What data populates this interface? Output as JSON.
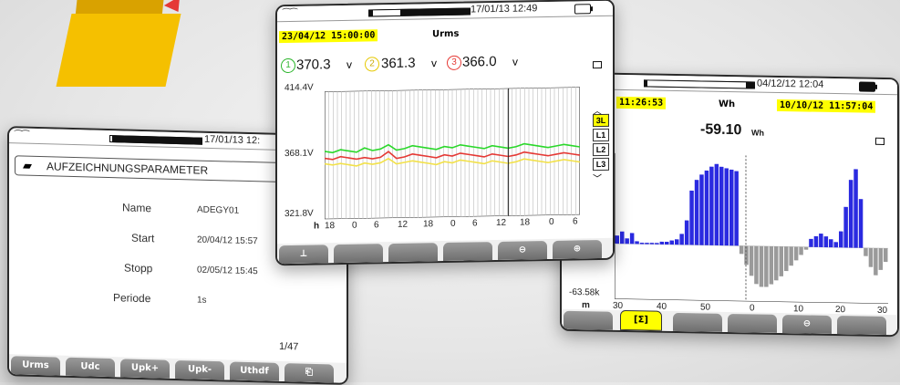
{
  "folder": {
    "icon": "folder-icon",
    "colors": {
      "front": "#f5c000",
      "back": "#d9a200",
      "arrow": "#e53935"
    }
  },
  "left_screen": {
    "datetime": "17/01/13 12:",
    "header": "AUFZEICHNUNGSPARAMETER",
    "rows": [
      {
        "label": "Name",
        "value": "ADEGY01"
      },
      {
        "label": "Start",
        "value": "20/04/12 15:57"
      },
      {
        "label": "Stopp",
        "value": "02/05/12 15:45"
      },
      {
        "label": "Periode",
        "value": "1s"
      }
    ],
    "page": "1/47",
    "buttons": [
      "Urms",
      "Udc",
      "Upk+",
      "Upk-",
      "Uthdf",
      ""
    ]
  },
  "middle_screen": {
    "datetime": "17/01/13 12:49",
    "cursor_time": "23/04/12 15:00:00",
    "measure": "Urms",
    "readings": [
      {
        "num": "1",
        "value": "370.3",
        "unit": "v",
        "color": "#2bb52b"
      },
      {
        "num": "2",
        "value": "361.3",
        "unit": "v",
        "color": "#e6c800"
      },
      {
        "num": "3",
        "value": "366.0",
        "unit": "v",
        "color": "#e53935"
      }
    ],
    "y_max": "414.4V",
    "y_mid": "368.1V",
    "y_min": "321.8V",
    "x_unit": "h",
    "x_ticks": [
      "18",
      "0",
      "6",
      "12",
      "18",
      "0",
      "6",
      "12",
      "18",
      "0",
      "6"
    ],
    "side_keys": [
      "3L",
      "L1",
      "L2",
      "L3"
    ],
    "buttons": [
      "",
      "",
      "",
      "",
      "",
      ""
    ],
    "chart_data": {
      "type": "line",
      "ylim": [
        321.8,
        414.4
      ],
      "series": [
        {
          "color": "#2bd82b",
          "values": [
            371,
            370,
            372,
            371,
            370,
            373,
            371,
            372,
            375,
            371,
            372,
            374,
            373,
            372,
            371,
            373,
            372,
            374,
            373,
            372,
            371,
            373,
            372,
            371,
            372,
            374,
            373,
            372,
            371,
            372,
            373,
            372,
            371
          ]
        },
        {
          "color": "#e53935",
          "values": [
            366,
            365,
            367,
            366,
            365,
            366,
            365,
            366,
            370,
            365,
            366,
            368,
            367,
            366,
            365,
            367,
            366,
            368,
            367,
            366,
            365,
            367,
            366,
            365,
            366,
            368,
            367,
            366,
            365,
            366,
            367,
            366,
            365
          ]
        },
        {
          "color": "#f2e14a",
          "values": [
            362,
            361,
            362,
            361,
            360,
            362,
            361,
            362,
            365,
            361,
            362,
            363,
            362,
            361,
            360,
            362,
            361,
            363,
            362,
            361,
            360,
            362,
            361,
            360,
            361,
            363,
            362,
            361,
            360,
            361,
            362,
            361,
            360
          ]
        }
      ]
    }
  },
  "right_screen": {
    "datetime": "04/12/12 12:04",
    "left_time": "11:26:53",
    "unit_lbl": "Wh",
    "right_time": "10/10/12 11:57:04",
    "reading": "-59.10",
    "reading_unit": "Wh",
    "y_min": "-63.58k",
    "x_unit": "m",
    "x_ticks": [
      "30",
      "40",
      "50",
      "0",
      "10",
      "20",
      "30"
    ],
    "buttons": [
      "",
      "[Σ]",
      "",
      "",
      "",
      ""
    ],
    "chart_data": {
      "type": "bar",
      "values": [
        6,
        9,
        4,
        8,
        2,
        1,
        1,
        1,
        1,
        2,
        2,
        3,
        4,
        8,
        18,
        40,
        48,
        52,
        55,
        58,
        60,
        58,
        57,
        56,
        55,
        -6,
        -14,
        -22,
        -28,
        -30,
        -30,
        -28,
        -25,
        -22,
        -18,
        -14,
        -10,
        -6,
        -2,
        6,
        8,
        10,
        8,
        6,
        4,
        12,
        30,
        50,
        58,
        36,
        -6,
        -14,
        -20,
        -16,
        -10
      ]
    }
  }
}
